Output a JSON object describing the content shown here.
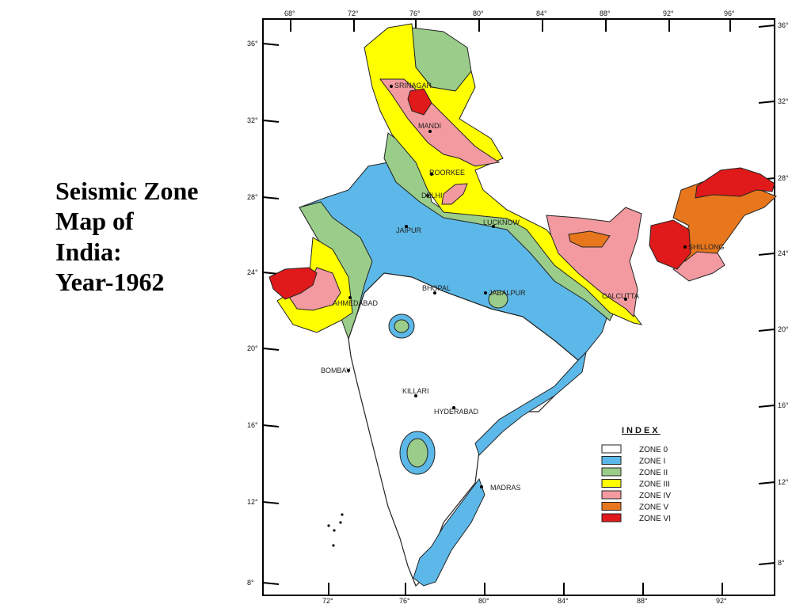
{
  "title": {
    "lines": [
      "Seismic Zone",
      "Map of",
      "India:",
      "Year-1962"
    ]
  },
  "map": {
    "top_ticks": [
      "68°",
      "72°",
      "76°",
      "80°",
      "84°",
      "88°",
      "92°",
      "96°"
    ],
    "bottom_ticks": [
      "72°",
      "76°",
      "80°",
      "84°",
      "88°",
      "92°"
    ],
    "left_ticks": [
      "36°",
      "32°",
      "28°",
      "24°",
      "20°",
      "16°",
      "12°",
      "8°"
    ],
    "right_ticks": [
      "36°",
      "32°",
      "28°",
      "24°",
      "20°",
      "16°",
      "12°",
      "8°"
    ],
    "cities": {
      "srinagar": "SRINAGAR",
      "mandi": "MANDI",
      "roorkee": "ROORKEE",
      "delhi": "DELHI",
      "jaipur": "JAIPUR",
      "lucknow": "LUCKNOW",
      "shillong": "SHILLONG",
      "ahmedabad": "AHMEDABAD",
      "bhopal": "BHOPAL",
      "jabalpur": "JABALPUR",
      "calcutta": "CALCUTTA",
      "bombay": "BOMBAY",
      "killari": "KILLARI",
      "hyderabad": "HYDERABAD",
      "madras": "MADRAS"
    },
    "zone_colors": {
      "zone0": "#ffffff",
      "zone1": "#5cb8e8",
      "zone2": "#9acd8a",
      "zone3": "#ffff00",
      "zone4": "#f29aa0",
      "zone5": "#e8761c",
      "zone6": "#e01a1a"
    }
  },
  "legend": {
    "title": "INDEX",
    "items": [
      {
        "label": "ZONE 0",
        "color": "#ffffff"
      },
      {
        "label": "ZONE I",
        "color": "#5cb8e8"
      },
      {
        "label": "ZONE II",
        "color": "#9acd8a"
      },
      {
        "label": "ZONE III",
        "color": "#ffff00"
      },
      {
        "label": "ZONE IV",
        "color": "#f29aa0"
      },
      {
        "label": "ZONE V",
        "color": "#e8761c"
      },
      {
        "label": "ZONE VI",
        "color": "#e01a1a"
      }
    ]
  }
}
